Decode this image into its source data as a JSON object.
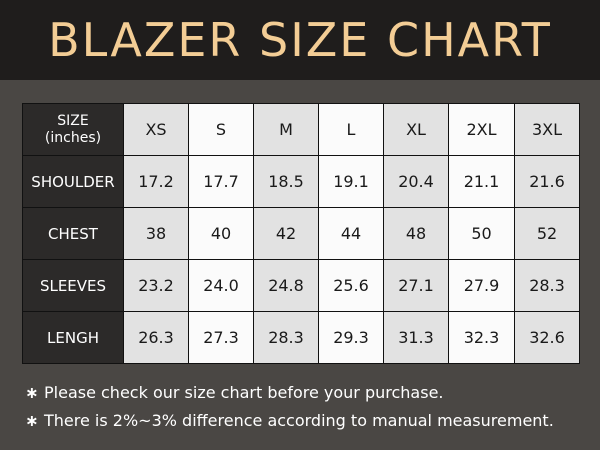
{
  "header": {
    "title": "BLAZER SIZE CHART"
  },
  "table": {
    "corner_line1": "SIZE",
    "corner_line2": "(inches)",
    "sizes": [
      "XS",
      "S",
      "M",
      "L",
      "XL",
      "2XL",
      "3XL"
    ],
    "rows": [
      {
        "label": "SHOULDER",
        "values": [
          "17.2",
          "17.7",
          "18.5",
          "19.1",
          "20.4",
          "21.1",
          "21.6"
        ]
      },
      {
        "label": "CHEST",
        "values": [
          "38",
          "40",
          "42",
          "44",
          "48",
          "50",
          "52"
        ]
      },
      {
        "label": "SLEEVES",
        "values": [
          "23.2",
          "24.0",
          "24.8",
          "25.6",
          "27.1",
          "27.9",
          "28.3"
        ]
      },
      {
        "label": "LENGH",
        "values": [
          "26.3",
          "27.3",
          "28.3",
          "29.3",
          "31.3",
          "32.3",
          "32.6"
        ]
      }
    ]
  },
  "notes": [
    {
      "icon": "asterisk-icon",
      "bullet": "∗",
      "text": "Please check our size chart before  your purchase."
    },
    {
      "icon": "asterisk-icon",
      "bullet": "∗",
      "text": "There is 2%~3% difference according to manual measurement."
    }
  ],
  "colors": {
    "background": "#4a4744",
    "header_band": "#1f1d1c",
    "title": "#f3cd95",
    "row_header": "#2c2a29",
    "shaded_cell": "#e2e2e2",
    "light_cell": "#fbfbfb"
  }
}
